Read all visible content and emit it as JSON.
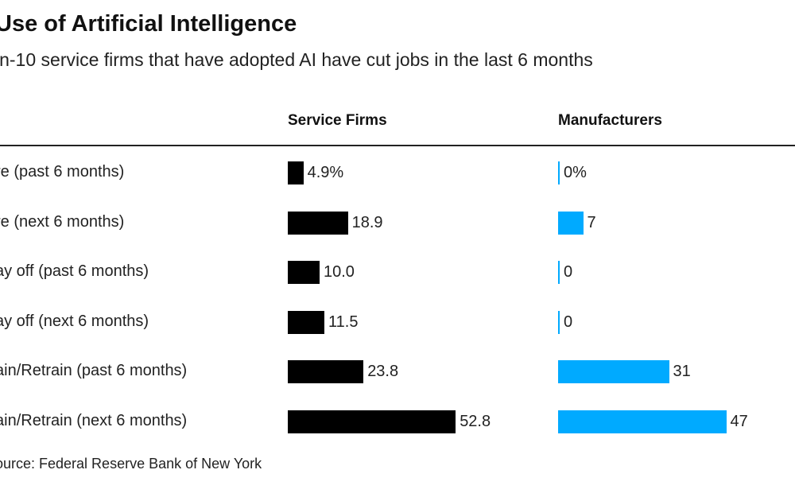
{
  "chart_data": {
    "type": "bar",
    "title": "Use of Artificial Intelligence",
    "subtitle": "in-10 service firms that have adopted AI have cut jobs in the last 6 months",
    "categories": [
      "re (past 6 months)",
      "re (next 6 months)",
      "ay off (past 6 months)",
      "ay off (next 6 months)",
      "ain/Retrain (past 6 months)",
      "ain/Retrain (next 6 months)"
    ],
    "series": [
      {
        "name": "Service Firms",
        "values": [
          4.9,
          18.9,
          10.0,
          11.5,
          23.8,
          52.8
        ],
        "labels": [
          "4.9%",
          "18.9",
          "10.0",
          "11.5",
          "23.8",
          "52.8"
        ],
        "color": "#000000"
      },
      {
        "name": "Manufacturers",
        "values": [
          0,
          7,
          0,
          0,
          31,
          47
        ],
        "labels": [
          "0%",
          "7",
          "0",
          "0",
          "31",
          "47"
        ],
        "color": "#00aaff"
      }
    ],
    "source": "ource: Federal Reserve Bank of New York"
  }
}
